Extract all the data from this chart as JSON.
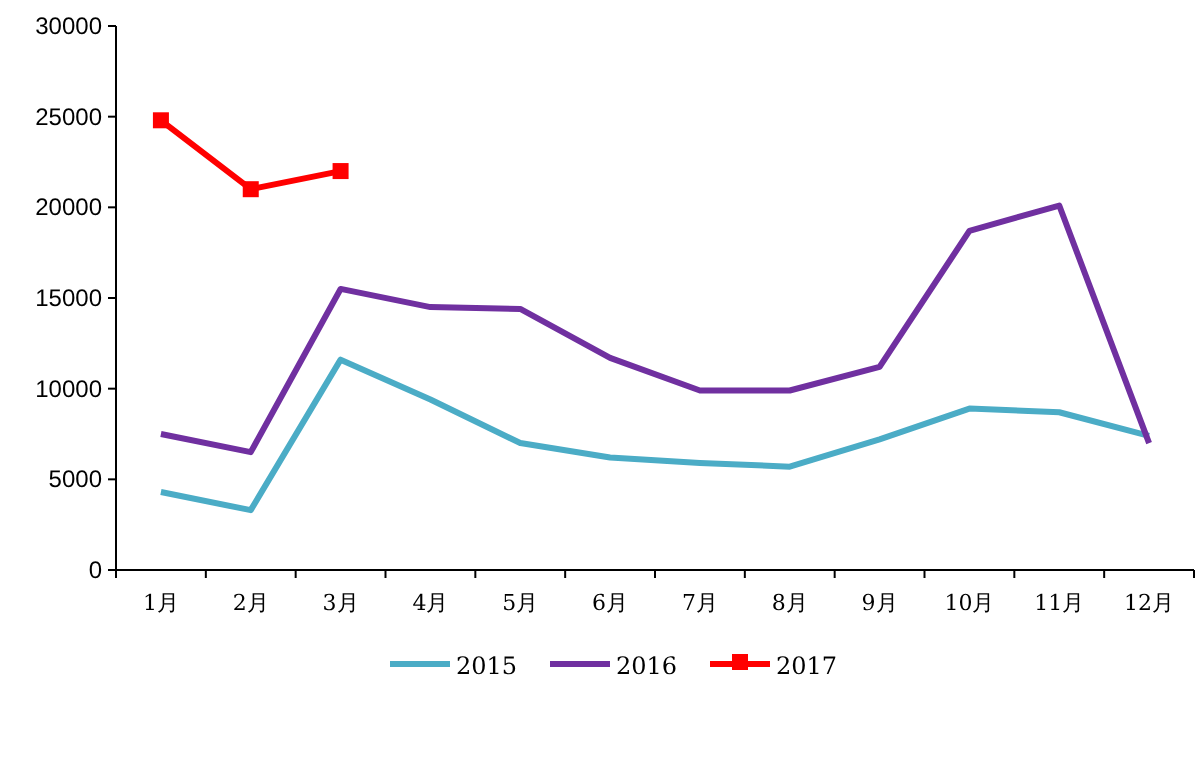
{
  "chart_data": {
    "type": "line",
    "categories": [
      "1月",
      "2月",
      "3月",
      "4月",
      "5月",
      "6月",
      "7月",
      "8月",
      "9月",
      "10月",
      "11月",
      "12月"
    ],
    "series": [
      {
        "name": "2015",
        "color": "#4bacc6",
        "values": [
          4300,
          3300,
          11600,
          9400,
          7000,
          6200,
          5900,
          5700,
          7200,
          8900,
          8700,
          7400
        ]
      },
      {
        "name": "2016",
        "color": "#7030a0",
        "values": [
          7500,
          6500,
          15500,
          14500,
          14400,
          11700,
          9900,
          9900,
          11200,
          18700,
          20100,
          7000
        ]
      },
      {
        "name": "2017",
        "color": "#ff0000",
        "marker": "square",
        "values": [
          24800,
          21000,
          22000,
          null,
          null,
          null,
          null,
          null,
          null,
          null,
          null,
          null
        ]
      }
    ],
    "ylim": [
      0,
      30000
    ],
    "yticks": [
      0,
      5000,
      10000,
      15000,
      20000,
      25000,
      30000
    ],
    "grid": false,
    "legend": "bottom"
  }
}
